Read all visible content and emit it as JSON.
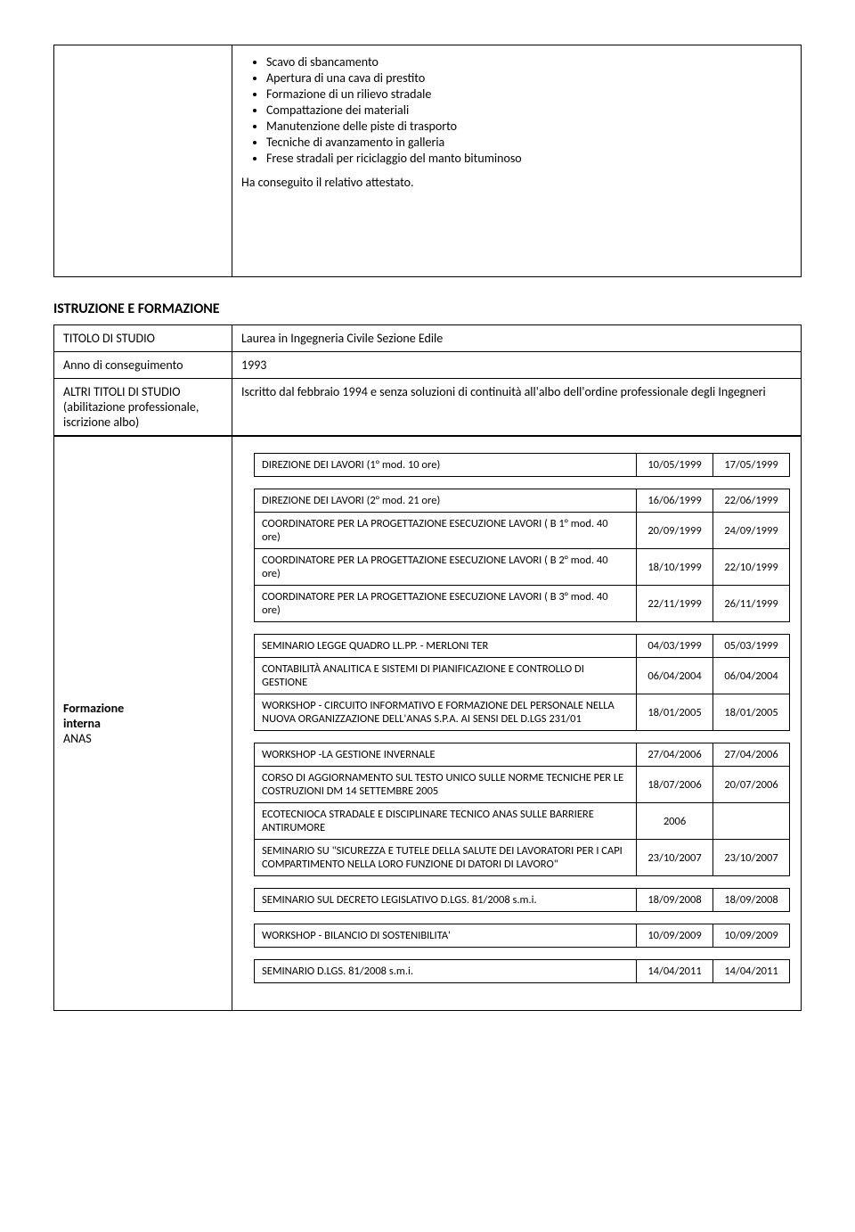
{
  "top_block": {
    "bullets": [
      "Scavo di sbancamento",
      "Apertura di una cava di prestito",
      "Formazione di un rilievo stradale",
      "Compattazione dei materiali",
      "Manutenzione delle piste di trasporto",
      "Tecniche di avanzamento in galleria",
      "Frese stradali per riciclaggio del manto bituminoso"
    ],
    "closing": "Ha conseguito il relativo attestato."
  },
  "section_title": "ISTRUZIONE E FORMAZIONE",
  "edu": {
    "titolo_label": "TITOLO DI STUDIO",
    "titolo_value": "Laurea in Ingegneria Civile Sezione Edile",
    "anno_label": "Anno di conseguimento",
    "anno_value": "1993",
    "altri_label": "ALTRI TITOLI DI STUDIO (abilitazione professionale, iscrizione albo)",
    "altri_value": "Iscritto dal febbraio 1994 e senza soluzioni di continuità all'albo dell'ordine professionale degli Ingegneri"
  },
  "formazione_label_1": "Formazione",
  "formazione_label_2": "interna",
  "formazione_label_3": "ANAS",
  "courses": [
    [
      {
        "name": "DIREZIONE DEI LAVORI (1° mod. 10 ore)",
        "d1": "10/05/1999",
        "d2": "17/05/1999"
      }
    ],
    [
      {
        "name": "DIREZIONE DEI LAVORI (2° mod. 21 ore)",
        "d1": "16/06/1999",
        "d2": "22/06/1999"
      },
      {
        "name": "COORDINATORE PER LA PROGETTAZIONE ESECUZIONE LAVORI ( B 1° mod. 40 ore)",
        "d1": "20/09/1999",
        "d2": "24/09/1999"
      },
      {
        "name": "COORDINATORE PER LA PROGETTAZIONE ESECUZIONE LAVORI ( B 2° mod. 40 ore)",
        "d1": "18/10/1999",
        "d2": "22/10/1999"
      },
      {
        "name": "COORDINATORE PER LA PROGETTAZIONE ESECUZIONE LAVORI ( B 3° mod. 40 ore)",
        "d1": "22/11/1999",
        "d2": "26/11/1999"
      }
    ],
    [
      {
        "name": "SEMINARIO LEGGE QUADRO LL.PP. - MERLONI TER",
        "d1": "04/03/1999",
        "d2": "05/03/1999"
      },
      {
        "name": "CONTABILITÀ ANALITICA E SISTEMI DI PIANIFICAZIONE E CONTROLLO DI GESTIONE",
        "d1": "06/04/2004",
        "d2": "06/04/2004"
      },
      {
        "name": "WORKSHOP - CIRCUITO INFORMATIVO E FORMAZIONE DEL PERSONALE NELLA NUOVA ORGANIZZAZIONE DELL'ANAS S.P.A. AI SENSI DEL D.LGS 231/01",
        "d1": "18/01/2005",
        "d2": "18/01/2005"
      }
    ],
    [
      {
        "name": "WORKSHOP -LA GESTIONE INVERNALE",
        "d1": "27/04/2006",
        "d2": "27/04/2006"
      },
      {
        "name": "CORSO DI AGGIORNAMENTO SUL TESTO UNICO SULLE NORME TECNICHE PER LE COSTRUZIONI DM 14 SETTEMBRE 2005",
        "d1": "18/07/2006",
        "d2": "20/07/2006"
      },
      {
        "name": "ECOTECNIOCA STRADALE E DISCIPLINARE TECNICO ANAS SULLE BARRIERE ANTIRUMORE",
        "d1": "2006",
        "d2": ""
      },
      {
        "name": "SEMINARIO SU \"SICUREZZA E TUTELE DELLA SALUTE DEI LAVORATORI PER I CAPI COMPARTIMENTO NELLA LORO FUNZIONE DI DATORI DI LAVORO\"",
        "d1": "23/10/2007",
        "d2": "23/10/2007"
      }
    ],
    [
      {
        "name": "SEMINARIO SUL DECRETO LEGISLATIVO D.LGS. 81/2008 s.m.i.",
        "d1": "18/09/2008",
        "d2": "18/09/2008"
      }
    ],
    [
      {
        "name": "WORKSHOP - BILANCIO DI SOSTENIBILITA'",
        "d1": "10/09/2009",
        "d2": "10/09/2009"
      }
    ],
    [
      {
        "name": "SEMINARIO D.LGS. 81/2008 s.m.i.",
        "d1": "14/04/2011",
        "d2": "14/04/2011"
      }
    ]
  ]
}
